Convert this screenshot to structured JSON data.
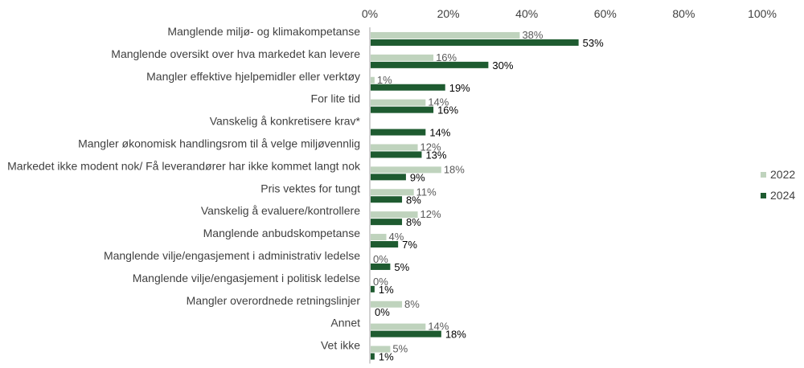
{
  "colors": {
    "s2022": "#bfd3bd",
    "s2024": "#1e5b30",
    "axis": "#a6a6a6"
  },
  "chart_data": {
    "type": "bar",
    "orientation": "horizontal",
    "title": "",
    "xlabel": "",
    "ylabel": "",
    "xlim": [
      0,
      100
    ],
    "x_ticks": [
      "0%",
      "20%",
      "40%",
      "60%",
      "80%",
      "100%"
    ],
    "x_axis_position": "top",
    "grid": false,
    "legend": "right",
    "categories": [
      "Manglende miljø- og klimakompetanse",
      "Manglende oversikt over hva markedet kan levere",
      "Mangler effektive hjelpemidler eller verktøy",
      "For lite tid",
      "Vanskelig å konkretisere krav*",
      "Mangler økonomisk handlingsrom til å velge miljøvennlig",
      "Markedet ikke modent nok/ Få leverandører har ikke kommet langt nok",
      "Pris vektes for tungt",
      "Vanskelig å evaluere/kontrollere",
      "Manglende anbudskompetanse",
      "Manglende vilje/engasjement i administrativ ledelse",
      "Manglende vilje/engasjement i politisk ledelse",
      "Mangler overordnede retningslinjer",
      "Annet",
      "Vet ikke"
    ],
    "series": [
      {
        "name": "2022",
        "values": [
          38,
          16,
          1,
          14,
          null,
          12,
          18,
          11,
          12,
          4,
          0,
          0,
          8,
          14,
          5
        ],
        "labels": [
          "38%",
          "16%",
          "1%",
          "14%",
          "",
          "12%",
          "18%",
          "11%",
          "12%",
          "4%",
          "0%",
          "0%",
          "8%",
          "14%",
          "5%"
        ]
      },
      {
        "name": "2024",
        "values": [
          53,
          30,
          19,
          16,
          14,
          13,
          9,
          8,
          8,
          7,
          5,
          1,
          0,
          18,
          1
        ],
        "labels": [
          "53%",
          "30%",
          "19%",
          "16%",
          "14%",
          "13%",
          "9%",
          "8%",
          "8%",
          "7%",
          "5%",
          "1%",
          "0%",
          "18%",
          "1%"
        ]
      }
    ]
  }
}
